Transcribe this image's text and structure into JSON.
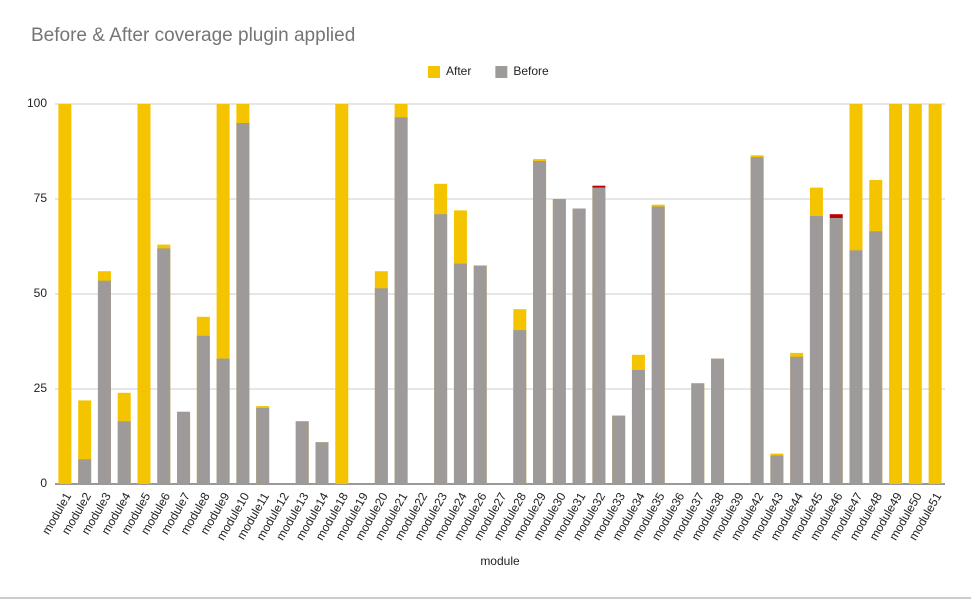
{
  "chart_data": {
    "type": "bar",
    "title": "Before & After coverage plugin applied",
    "x_label": "module",
    "categories": [
      "module1",
      "module2",
      "module3",
      "module4",
      "module5",
      "module6",
      "module7",
      "module8",
      "module9",
      "module10",
      "module11",
      "module12",
      "module13",
      "module14",
      "module18",
      "module19",
      "module20",
      "module21",
      "module22",
      "module23",
      "module24",
      "module26",
      "module27",
      "module28",
      "module29",
      "module30",
      "module31",
      "module32",
      "module33",
      "module34",
      "module35",
      "module36",
      "module37",
      "module38",
      "module39",
      "module42",
      "module43",
      "module44",
      "module45",
      "module46",
      "module47",
      "module48",
      "module49",
      "module50",
      "module51"
    ],
    "series": [
      {
        "name": "After",
        "color": "#f5c400",
        "values": [
          100,
          22,
          56,
          24,
          100,
          63,
          19,
          44,
          100,
          100,
          20.5,
          0,
          16.5,
          11,
          100,
          0,
          56,
          100,
          0,
          79,
          72,
          57.5,
          0,
          46,
          85.5,
          75,
          72.5,
          78,
          18,
          34,
          73.5,
          0,
          26.5,
          33,
          0,
          86.5,
          8,
          34.5,
          78,
          70,
          100,
          80,
          100,
          100,
          100
        ]
      },
      {
        "name": "Before",
        "color": "#9e9a9a",
        "values": [
          0,
          6.5,
          53.5,
          16.5,
          0,
          62,
          19,
          39,
          33,
          95,
          20,
          0,
          16.5,
          11,
          0,
          0,
          51.5,
          96.5,
          0,
          71,
          58,
          57.5,
          0,
          40.5,
          85,
          75,
          72.5,
          78.5,
          18,
          30,
          73,
          0,
          26.5,
          33,
          0,
          86,
          7.5,
          33.5,
          70.5,
          71,
          61.5,
          66.5,
          0,
          0,
          0
        ]
      }
    ],
    "drop_color": "#c00000",
    "ylim": [
      0,
      100
    ],
    "yticks": [
      0,
      25,
      50,
      75,
      100
    ],
    "grid": true,
    "legend": "top"
  }
}
